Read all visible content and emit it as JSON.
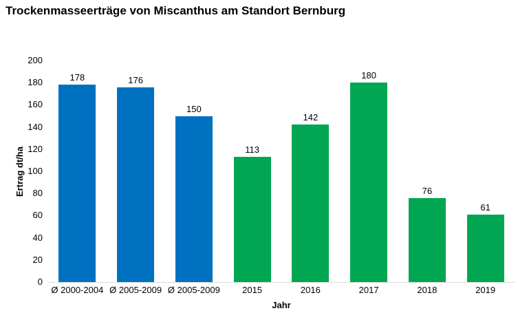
{
  "title": "Trockenmasseerträge von Miscanthus am Standort Bernburg",
  "chart_data": {
    "type": "bar",
    "title": "Trockenmasseerträge von Miscanthus am Standort Bernburg",
    "categories": [
      "Ø 2000-2004",
      "Ø 2005-2009",
      "Ø 2005-2009",
      "2015",
      "2016",
      "2017",
      "2018",
      "2019"
    ],
    "values": [
      178,
      176,
      150,
      113,
      142,
      180,
      76,
      61
    ],
    "bar_colors": [
      "#0071C1",
      "#0071C1",
      "#0071C1",
      "#00A651",
      "#00A651",
      "#00A651",
      "#00A651",
      "#00A651"
    ],
    "xlabel": "Jahr",
    "ylabel": "Ertrag dt/ha",
    "ylim": [
      0,
      200
    ],
    "yticks": [
      0,
      20,
      40,
      60,
      80,
      100,
      120,
      140,
      160,
      180,
      200
    ],
    "grid": false,
    "legend": false,
    "data_labels": true,
    "colors": {
      "blue_series": "#0071C1",
      "green_series": "#00A651",
      "axis_line": "#D9D9D9",
      "text": "#000000",
      "background": "#FFFFFF"
    }
  }
}
